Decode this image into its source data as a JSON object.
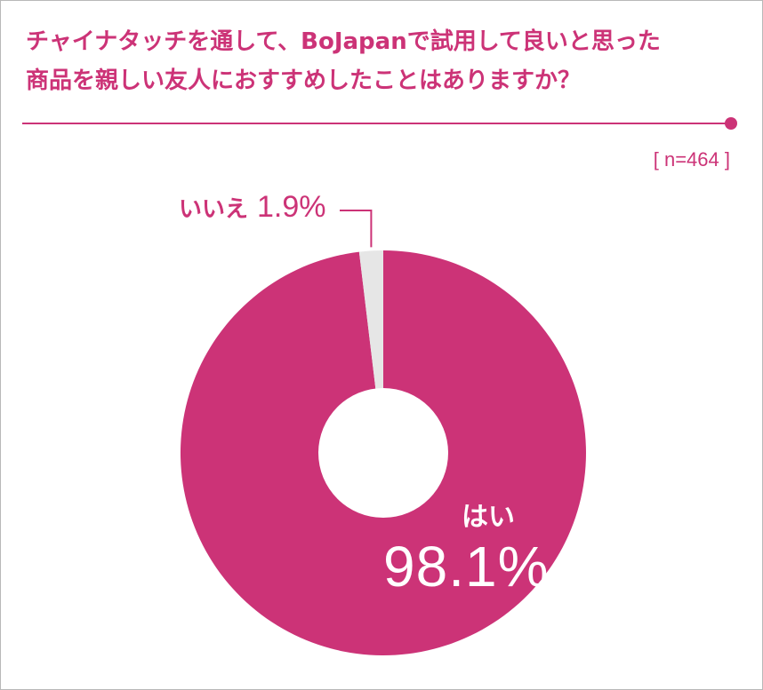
{
  "title_lines": [
    "チャイナタッチを通して、BoJapanで試用して良いと思った",
    "商品を親しい友人におすすめしたことはありますか？"
  ],
  "sample_size": "[ n=464 ]",
  "chart_data": {
    "type": "pie",
    "title": "チャイナタッチを通して、BoJapanで試用して良いと思った商品を親しい友人におすすめしたことはありますか？",
    "categories": [
      "はい",
      "いいえ"
    ],
    "values": [
      98.1,
      1.9
    ],
    "value_labels": [
      "98.1%",
      "1.9%"
    ],
    "colors": [
      "#cc3377",
      "#e6e6e6"
    ],
    "donut": true,
    "n": "n=464"
  },
  "colors": {
    "accent": "#cc3377",
    "secondary": "#e6e6e6"
  }
}
